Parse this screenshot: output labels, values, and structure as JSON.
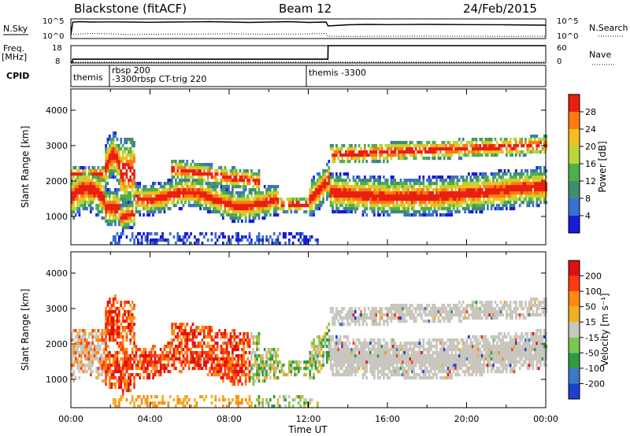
{
  "header": {
    "station": "Blackstone (fitACF)",
    "beam": "Beam 12",
    "date": "24/Feb/2015"
  },
  "colors": {
    "power": [
      "#1a1ad9",
      "#3a6fd0",
      "#3f8f6f",
      "#4fb04a",
      "#b8d63a",
      "#f0c020",
      "#ff7a10",
      "#e82010"
    ],
    "velocity": [
      "#1c3fd0",
      "#3a78c8",
      "#2f9a40",
      "#7cc850",
      "#c8c6be",
      "#f0b020",
      "#ff8a10",
      "#ff3a10",
      "#e01010"
    ]
  },
  "chart_data": [
    {
      "type": "line",
      "name": "nsky-nsearch",
      "left_label": "N.Sky",
      "right_label": "N.Search",
      "left_ticks": [
        "10^5",
        "10^0"
      ],
      "right_ticks": [
        "10^5",
        "10^0"
      ],
      "series": [
        {
          "style": "solid",
          "x": [
            0,
            0.1,
            0.5,
            1,
            2,
            3,
            4,
            5,
            6,
            7,
            8,
            9,
            10,
            11,
            12,
            12.9,
            13,
            14,
            15,
            16,
            18,
            20,
            22,
            24
          ],
          "y": [
            1.0,
            4.2,
            4.3,
            4.2,
            4.25,
            4.2,
            4.15,
            4.2,
            4.25,
            4.3,
            4.2,
            4.1,
            4.2,
            4.3,
            4.1,
            4.2,
            3.2,
            3.5,
            3.6,
            3.55,
            3.6,
            3.55,
            3.5,
            3.4
          ]
        },
        {
          "style": "dotted",
          "x": [
            0,
            1,
            2,
            3,
            4,
            6,
            8,
            10,
            12,
            12.9,
            13,
            14,
            16,
            18,
            20,
            22,
            24
          ],
          "y": [
            1.0,
            1.3,
            1.2,
            1.0,
            1.1,
            1.15,
            1.2,
            1.1,
            1.2,
            1.3,
            0.6,
            0.55,
            0.6,
            0.62,
            0.6,
            0.55,
            0.6
          ]
        }
      ]
    },
    {
      "type": "line",
      "name": "freq-nave",
      "left_label": "Freq.",
      "left_unit": "[MHz]",
      "right_label": "Nave",
      "left_ticks": [
        "18",
        "8"
      ],
      "right_ticks": [
        "60",
        "0"
      ],
      "series": [
        {
          "style": "solid",
          "x": [
            0,
            0.05,
            0.1,
            12.99,
            13,
            24
          ],
          "y": [
            8,
            8,
            10.2,
            10.2,
            18,
            18
          ]
        },
        {
          "style": "dotted",
          "x": [
            0,
            24
          ],
          "y": [
            8.5,
            8.5
          ]
        }
      ]
    },
    {
      "type": "table",
      "name": "cpid",
      "label": "CPID",
      "entries": [
        {
          "x": 0.0,
          "text": "themis"
        },
        {
          "x": 1.95,
          "text": "rbsp 200"
        },
        {
          "x": 1.95,
          "text": "-3300rbsp CT-trig 220"
        },
        {
          "x": 11.9,
          "text": "themis -3300"
        }
      ]
    },
    {
      "type": "heatmap",
      "name": "power",
      "ylabel": "Slant Range [km]",
      "ylim": [
        200,
        4600
      ],
      "yticks": [
        1000,
        2000,
        3000,
        4000
      ],
      "colorbar_label": "Power [dB]",
      "colorbar_ticks": [
        "4",
        "8",
        "12",
        "16",
        "20",
        "24",
        "28"
      ]
    },
    {
      "type": "heatmap",
      "name": "velocity",
      "ylabel": "Slant Range [km]",
      "ylim": [
        200,
        4600
      ],
      "yticks": [
        1000,
        2000,
        3000,
        4000
      ],
      "xlabel": "Time UT",
      "xticks": [
        "00:00",
        "04:00",
        "08:00",
        "12:00",
        "16:00",
        "20:00",
        "00:00"
      ],
      "colorbar_label": "Velocity [m s⁻¹]",
      "colorbar_ticks": [
        "200",
        "100",
        "50",
        "15",
        "-15",
        "-50",
        "-100",
        "-200"
      ]
    }
  ]
}
